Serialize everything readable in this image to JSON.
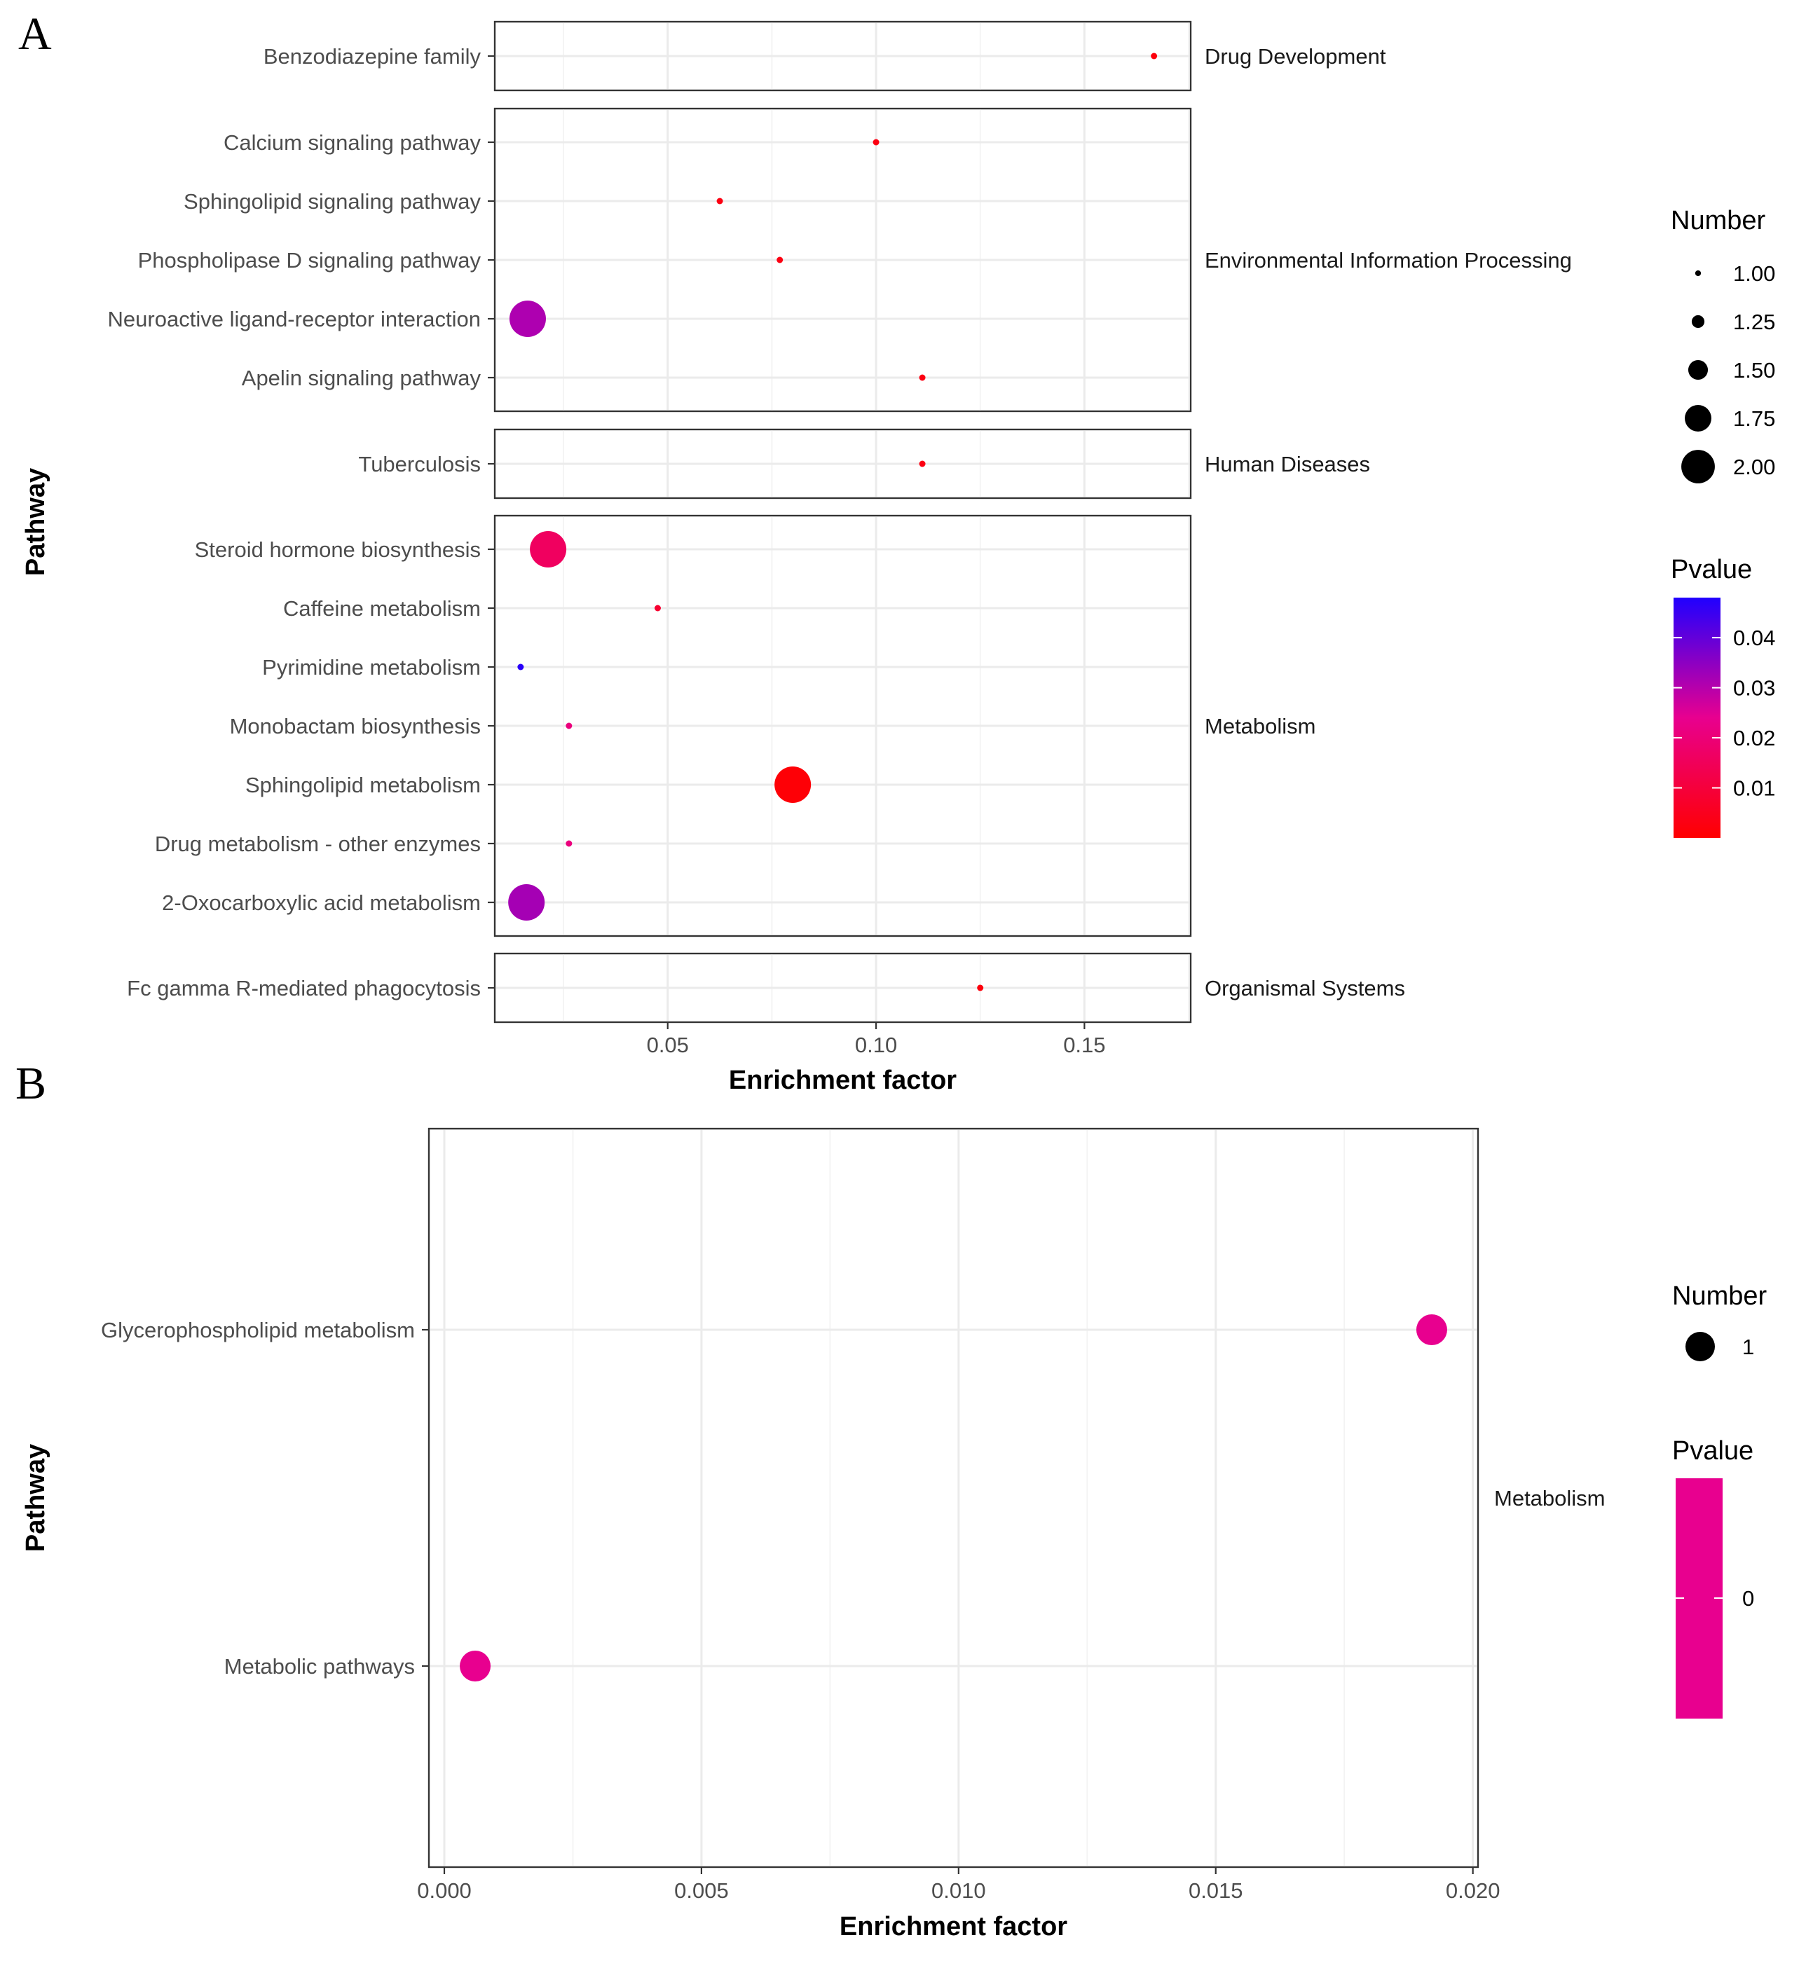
{
  "chart_data": [
    {
      "panel_label": "A",
      "type": "scatter",
      "xlabel": "Enrichment factor",
      "ylabel": "Pathway",
      "xlim": [
        0.0085,
        0.1755
      ],
      "xticks": [
        {
          "value": 0.05,
          "label": "0.05"
        },
        {
          "value": 0.1,
          "label": "0.10"
        },
        {
          "value": 0.15,
          "label": "0.15"
        }
      ],
      "facets": [
        {
          "label": "Drug Development",
          "points": [
            {
              "pathway": "Benzodiazepine family",
              "x": 0.1667,
              "number": 1,
              "pvalue": 0.002
            }
          ]
        },
        {
          "label": "Environmental Information Processing",
          "points": [
            {
              "pathway": "Calcium signaling pathway",
              "x": 0.1,
              "number": 1,
              "pvalue": 0.003
            },
            {
              "pathway": "Sphingolipid signaling pathway",
              "x": 0.0625,
              "number": 1,
              "pvalue": 0.003
            },
            {
              "pathway": "Phospholipase D signaling pathway",
              "x": 0.0769,
              "number": 1,
              "pvalue": 0.003
            },
            {
              "pathway": "Neuroactive ligand-receptor interaction",
              "x": 0.0164,
              "number": 2,
              "pvalue": 0.031
            },
            {
              "pathway": "Apelin signaling pathway",
              "x": 0.1111,
              "number": 1,
              "pvalue": 0.003
            }
          ]
        },
        {
          "label": "Human Diseases",
          "points": [
            {
              "pathway": "Tuberculosis",
              "x": 0.1111,
              "number": 1,
              "pvalue": 0.003
            }
          ]
        },
        {
          "label": "Metabolism",
          "points": [
            {
              "pathway": "Steroid hormone biosynthesis",
              "x": 0.0213,
              "number": 2,
              "pvalue": 0.016
            },
            {
              "pathway": "Caffeine metabolism",
              "x": 0.0476,
              "number": 1,
              "pvalue": 0.008
            },
            {
              "pathway": "Pyrimidine metabolism",
              "x": 0.0147,
              "number": 1,
              "pvalue": 0.047
            },
            {
              "pathway": "Monobactam biosynthesis",
              "x": 0.0263,
              "number": 1,
              "pvalue": 0.021
            },
            {
              "pathway": "Sphingolipid metabolism",
              "x": 0.08,
              "number": 2,
              "pvalue": 0.001
            },
            {
              "pathway": "Drug metabolism - other enzymes",
              "x": 0.0263,
              "number": 1,
              "pvalue": 0.021
            },
            {
              "pathway": "2-Oxocarboxylic acid metabolism",
              "x": 0.0161,
              "number": 2,
              "pvalue": 0.032
            }
          ]
        },
        {
          "label": "Organismal Systems",
          "points": [
            {
              "pathway": "Fc gamma R-mediated phagocytosis",
              "x": 0.125,
              "number": 1,
              "pvalue": 0.002
            }
          ]
        }
      ],
      "size_legend": {
        "title": "Number",
        "entries": [
          {
            "value": 1.0,
            "label": "1.00"
          },
          {
            "value": 1.25,
            "label": "1.25"
          },
          {
            "value": 1.5,
            "label": "1.50"
          },
          {
            "value": 1.75,
            "label": "1.75"
          },
          {
            "value": 2.0,
            "label": "2.00"
          }
        ]
      },
      "color_legend": {
        "title": "Pvalue",
        "range": [
          0.0,
          0.048
        ],
        "low_color": "#ff0000",
        "high_color": "#0000ff",
        "ticks": [
          {
            "value": 0.04,
            "label": "0.04"
          },
          {
            "value": 0.03,
            "label": "0.03"
          },
          {
            "value": 0.02,
            "label": "0.02"
          },
          {
            "value": 0.01,
            "label": "0.01"
          }
        ]
      }
    },
    {
      "panel_label": "B",
      "type": "scatter",
      "xlabel": "Enrichment factor",
      "ylabel": "Pathway",
      "xlim": [
        -0.0003,
        0.0201
      ],
      "xticks": [
        {
          "value": 0.0,
          "label": "0.000"
        },
        {
          "value": 0.005,
          "label": "0.005"
        },
        {
          "value": 0.01,
          "label": "0.010"
        },
        {
          "value": 0.015,
          "label": "0.015"
        },
        {
          "value": 0.02,
          "label": "0.020"
        }
      ],
      "facets": [
        {
          "label": "Metabolism",
          "points": [
            {
              "pathway": "Glycerophospholipid metabolism",
              "x": 0.0192,
              "number": 1,
              "pvalue": 0.0
            },
            {
              "pathway": "Metabolic pathways",
              "x": 0.0006,
              "number": 1,
              "pvalue": 0.0
            }
          ]
        }
      ],
      "size_legend": {
        "title": "Number",
        "entries": [
          {
            "value": 1,
            "label": "1"
          }
        ]
      },
      "color_legend": {
        "title": "Pvalue",
        "color": "#e8008f",
        "ticks": [
          {
            "value": 0,
            "label": "0"
          }
        ]
      }
    }
  ]
}
